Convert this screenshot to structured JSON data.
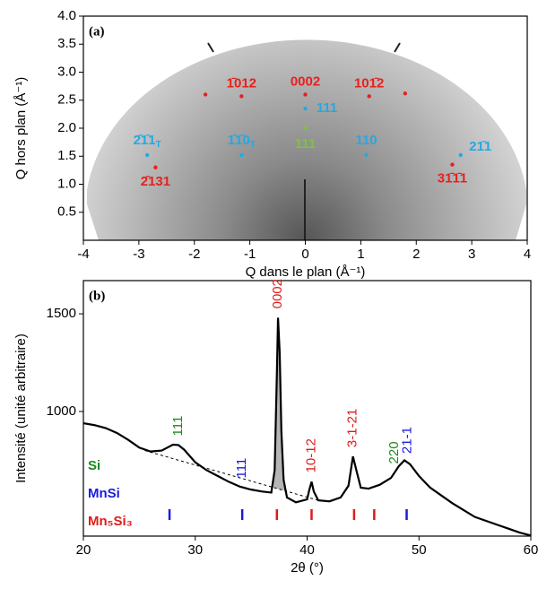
{
  "chart_data": [
    {
      "type": "scatter",
      "panel_label": "(a)",
      "x_label": "Q dans le plan (Å⁻¹)",
      "y_label": "Q hors plan (Å⁻¹)",
      "xlim": [
        -4,
        4
      ],
      "ylim": [
        0,
        4
      ],
      "xticks": [
        -4,
        -3,
        -2,
        -1,
        0,
        1,
        2,
        3,
        4
      ],
      "yticks": [
        0.5,
        {
          "value": 1,
          "label": "1.0"
        },
        1.5,
        {
          "value": 2,
          "label": "2.0"
        },
        2.5,
        {
          "value": 3,
          "label": "3.0"
        },
        3.5,
        {
          "value": 4,
          "label": "4.0"
        }
      ],
      "points": [
        {
          "x": -1.8,
          "y": 2.6,
          "color": "#e8201e"
        },
        {
          "x": -1.15,
          "y": 2.57,
          "color": "#e8201e",
          "label": "1̄012"
        },
        {
          "x": 0,
          "y": 2.6,
          "color": "#e8201e",
          "label": "0002"
        },
        {
          "x": 1.15,
          "y": 2.57,
          "color": "#e8201e",
          "label": "101̄2"
        },
        {
          "x": 1.8,
          "y": 2.62,
          "color": "#e8201e"
        },
        {
          "x": 0,
          "y": 2.35,
          "color": "#22a9e6",
          "label": "111"
        },
        {
          "x": 0,
          "y": 2.0,
          "color": "#7ec242",
          "label": "111"
        },
        {
          "x": -1.15,
          "y": 1.52,
          "color": "#22a9e6",
          "label": "1̄1̄0",
          "sub": "T"
        },
        {
          "x": 1.1,
          "y": 1.52,
          "color": "#22a9e6",
          "label": "110"
        },
        {
          "x": -2.85,
          "y": 1.52,
          "color": "#22a9e6",
          "label": "2̄1̄1",
          "sub": "T"
        },
        {
          "x": 2.8,
          "y": 1.52,
          "color": "#22a9e6",
          "label": "21̄1"
        },
        {
          "x": -2.7,
          "y": 1.3,
          "color": "#e8201e",
          "label": "2̄131"
        },
        {
          "x": 2.65,
          "y": 1.35,
          "color": "#e8201e",
          "label": "31̄1̄1"
        }
      ]
    },
    {
      "type": "line",
      "panel_label": "(b)",
      "x_label": "2θ (°)",
      "y_label": "Intensité (unité arbitraire)",
      "xlim": [
        20,
        60
      ],
      "ylim": [
        362,
        1670
      ],
      "xticks": [
        20,
        30,
        40,
        50,
        60
      ],
      "yticks": [
        1000,
        1500
      ],
      "color": "#000000",
      "x": [
        20,
        21,
        22,
        23,
        24,
        25,
        26,
        27,
        27.5,
        28,
        28.5,
        29,
        30,
        31,
        32,
        33,
        34,
        35,
        36,
        36.8,
        37.1,
        37.3,
        37.4,
        37.55,
        37.7,
        37.9,
        38.2,
        39,
        40,
        40.2,
        40.4,
        40.6,
        41,
        42,
        43,
        43.7,
        44.1,
        44.4,
        44.8,
        45.5,
        46.5,
        47.5,
        48.2,
        48.7,
        49.2,
        50,
        51,
        52,
        53,
        54,
        55,
        56,
        57,
        58,
        59,
        60
      ],
      "values": [
        940,
        930,
        915,
        890,
        855,
        815,
        795,
        800,
        815,
        830,
        828,
        805,
        740,
        700,
        670,
        640,
        615,
        600,
        590,
        585,
        700,
        1200,
        1480,
        1300,
        900,
        650,
        560,
        535,
        550,
        600,
        640,
        590,
        545,
        540,
        560,
        620,
        770,
        700,
        610,
        605,
        625,
        660,
        720,
        750,
        730,
        670,
        610,
        570,
        530,
        495,
        460,
        440,
        420,
        400,
        380,
        365
      ],
      "baseline": {
        "x": [
          25.5,
          41
        ],
        "values": [
          800,
          545
        ]
      },
      "annotations": [
        {
          "text": "111",
          "x": 28.5,
          "color": "#1a8a1a"
        },
        {
          "text": "111",
          "x": 34.2,
          "color": "#1a1ae0"
        },
        {
          "text": "0002",
          "x": 37.4,
          "color": "#e01a1a"
        },
        {
          "text": "10-12",
          "x": 40.4,
          "color": "#e01a1a"
        },
        {
          "text": "3-1-21",
          "x": 44.1,
          "color": "#e01a1a"
        },
        {
          "text": "220",
          "x": 47.8,
          "color": "#1a8a1a"
        },
        {
          "text": "21-1",
          "x": 49.0,
          "color": "#1a1ae0"
        }
      ],
      "references": [
        {
          "name": "Si",
          "color": "#1a8a1a",
          "positions": []
        },
        {
          "name": "MnSi",
          "color": "#1a1ae0",
          "positions": [
            27.7,
            34.2,
            48.9
          ]
        },
        {
          "name": "Mn₅Si₃",
          "color": "#e01a1a",
          "positions": [
            37.3,
            40.4,
            44.2,
            46.0
          ]
        }
      ]
    }
  ]
}
